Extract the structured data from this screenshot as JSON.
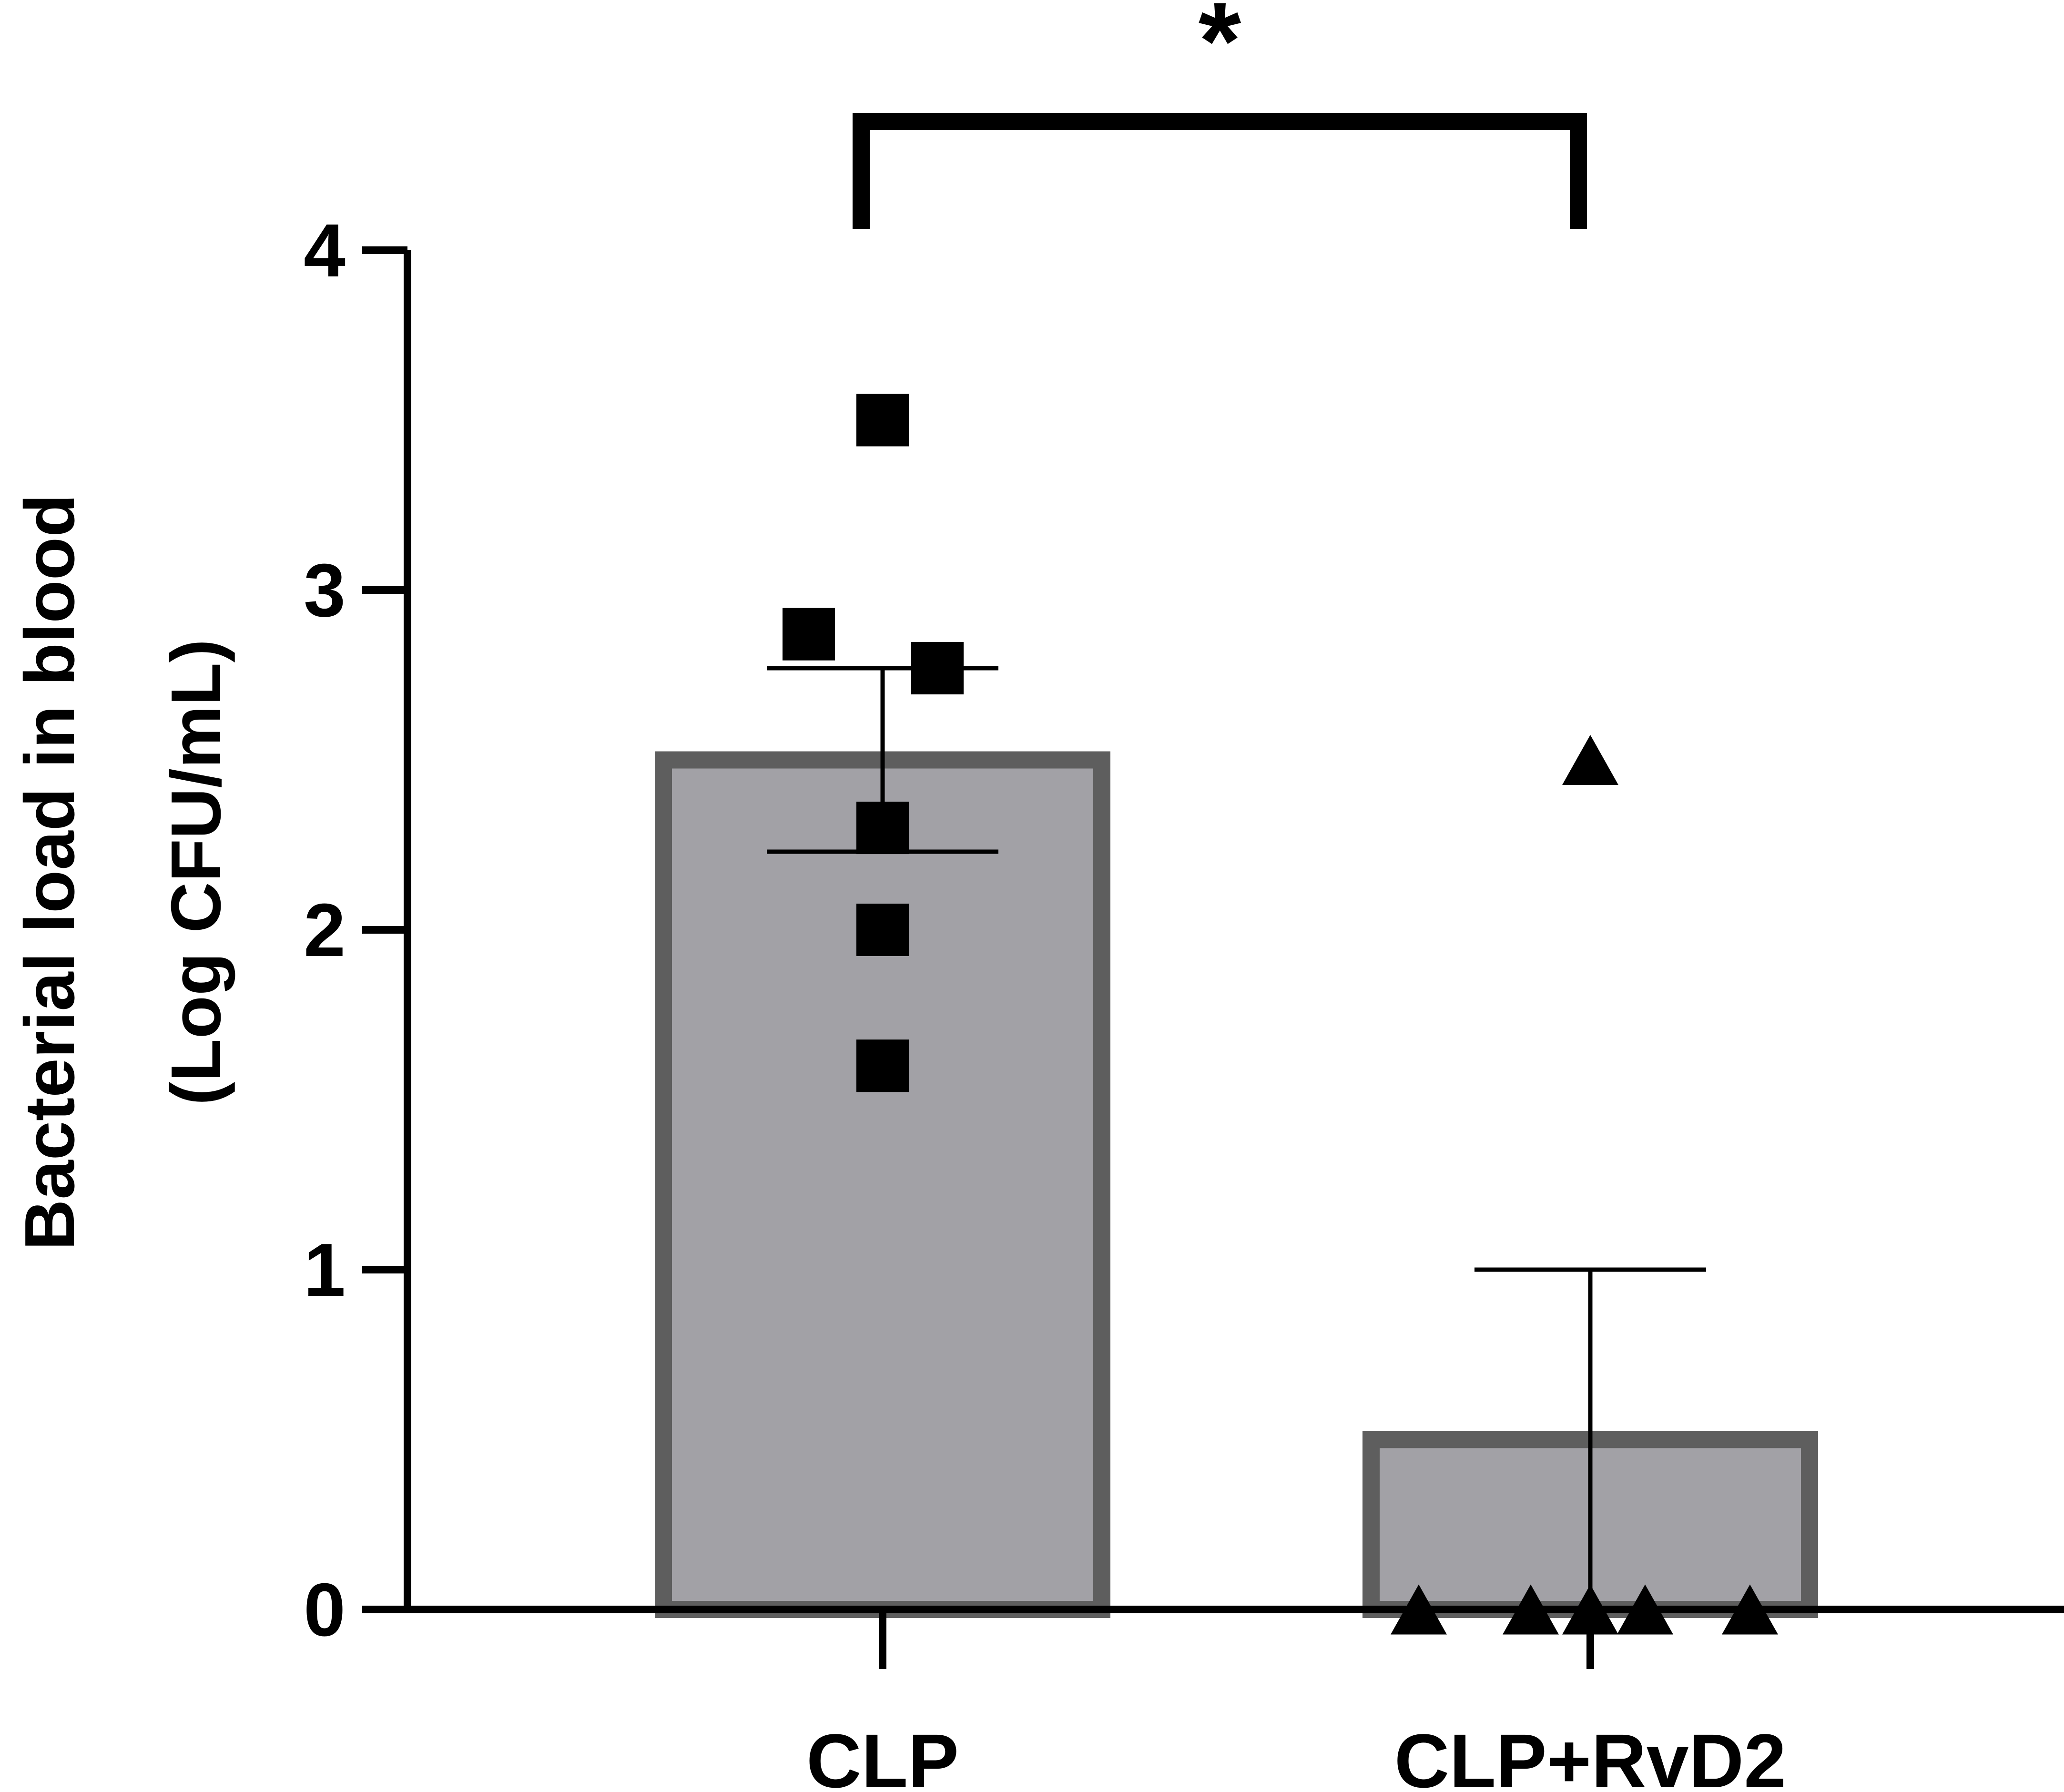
{
  "chart_data": {
    "type": "bar",
    "ylabel_line1": "Bacterial load in blood",
    "ylabel_line2": "(Log CFU/mL)",
    "xlabel": "",
    "ylim": [
      0,
      4
    ],
    "yticks": [
      0,
      1,
      2,
      3,
      4
    ],
    "categories": [
      "CLP",
      "CLP+RvD2"
    ],
    "values": [
      2.5,
      0.5
    ],
    "error": [
      0.27,
      0.5
    ],
    "points": [
      {
        "group": "CLP",
        "marker": "square",
        "values": [
          3.5,
          2.87,
          2.77,
          2.3,
          2.0,
          1.6
        ]
      },
      {
        "group": "CLP+RvD2",
        "marker": "triangle",
        "values": [
          2.5,
          0,
          0,
          0,
          0,
          0
        ]
      }
    ],
    "significance": {
      "from": "CLP",
      "to": "CLP+RvD2",
      "label": "*"
    },
    "colors": {
      "bar_fill": "#a2a1a6",
      "bar_edge": "#5e5e5e",
      "ink": "#000000"
    }
  }
}
